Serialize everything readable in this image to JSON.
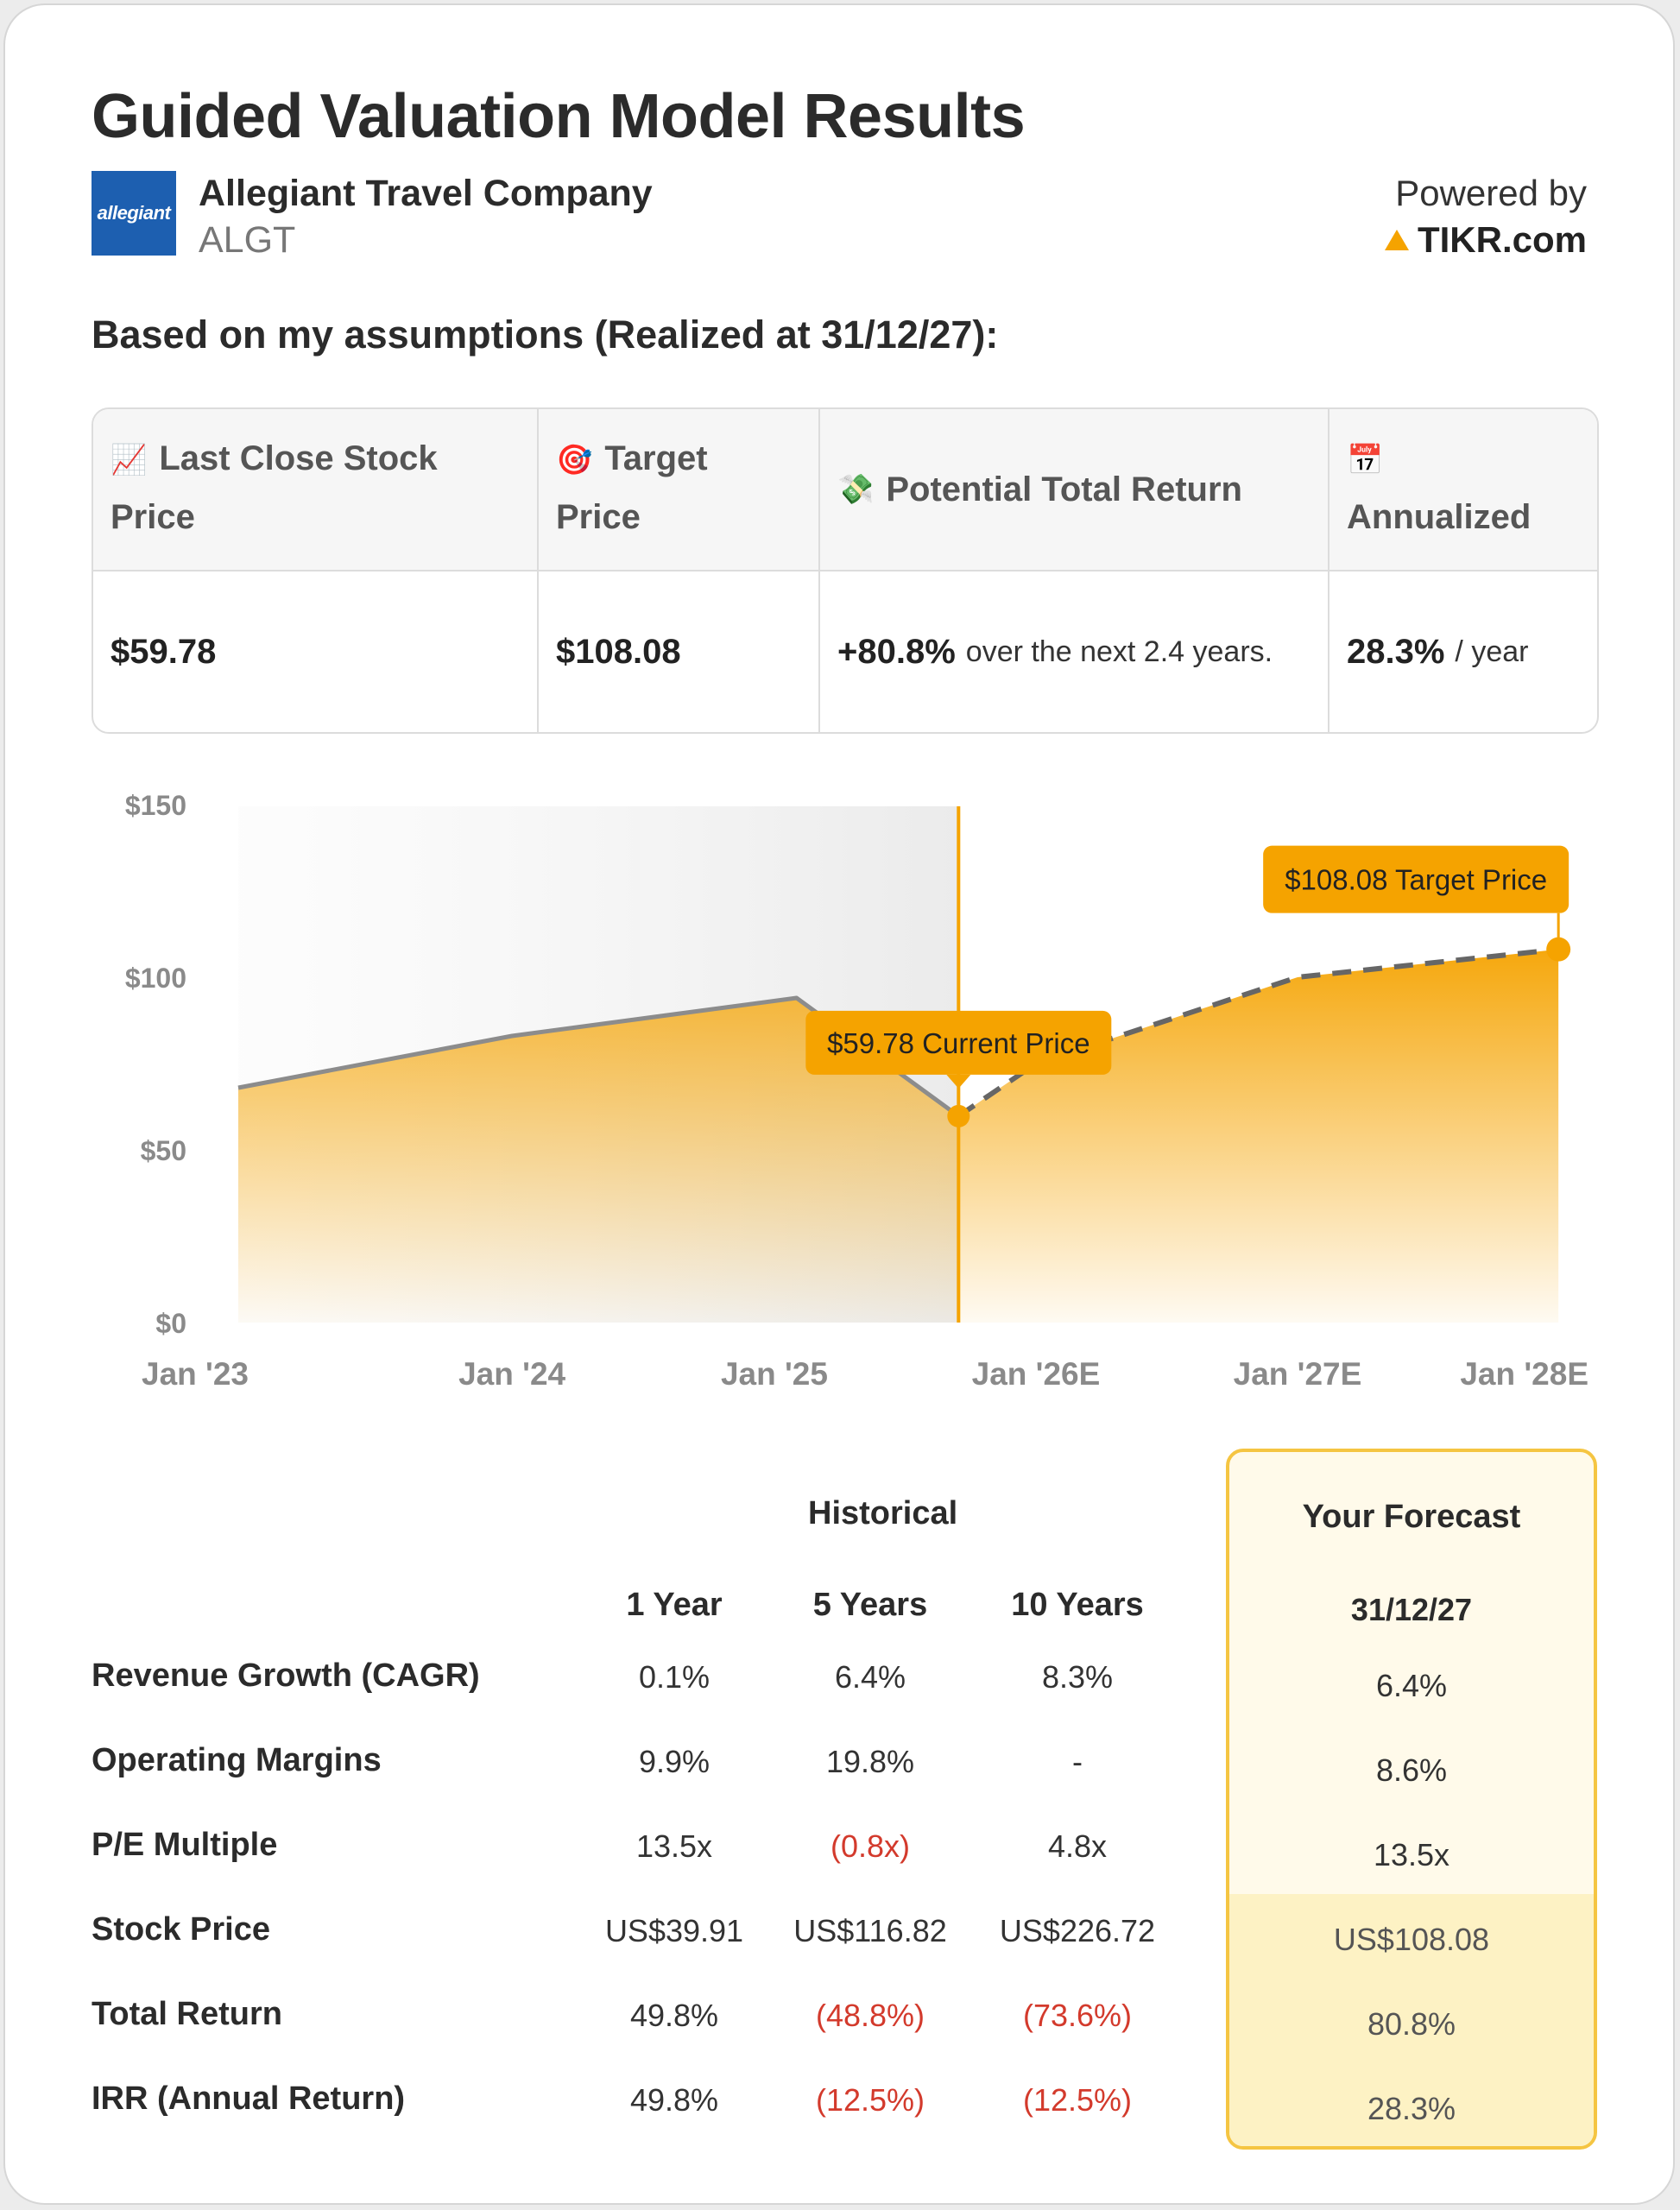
{
  "title": "Guided Valuation Model Results",
  "company": {
    "name": "Allegiant Travel Company",
    "ticker": "ALGT",
    "logo_text": "allegiant"
  },
  "powered_by": {
    "label": "Powered by",
    "brand": "TIKR.com"
  },
  "assumptions_text": "Based on my assumptions (Realized at 31/12/27):",
  "summary": {
    "headers": {
      "last_close": "Last Close Stock Price",
      "target": "Target Price",
      "potential": "Potential Total Return",
      "annualized": "Annualized"
    },
    "icons": {
      "last_close": "chart-increasing-icon",
      "target": "target-icon",
      "potential": "money-icon",
      "annualized": "calendar-icon"
    },
    "last_close_value": "$59.78",
    "target_value": "$108.08",
    "potential_value": "+80.8%",
    "potential_note": "over the next 2.4 years.",
    "annualized_value": "28.3%",
    "annualized_note": "/ year"
  },
  "chart_data": {
    "type": "area",
    "y_ticks": [
      "$150",
      "$100",
      "$50",
      "$0"
    ],
    "x_ticks": [
      "Jan '23",
      "Jan '24",
      "Jan '25",
      "Jan '26E",
      "Jan '27E",
      "Jan '28E"
    ],
    "ylim": [
      0,
      150
    ],
    "xlim": [
      "2022-12-15",
      "2028-01-01"
    ],
    "historical": [
      {
        "x": "2022-12-15",
        "y": 68
      },
      {
        "x": "2024-01-01",
        "y": 83
      },
      {
        "x": "2025-02-01",
        "y": 94
      },
      {
        "x": "2025-09-15",
        "y": 59.78
      }
    ],
    "forecast": [
      {
        "x": "2025-09-15",
        "y": 59.78
      },
      {
        "x": "2026-01-01",
        "y": 75
      },
      {
        "x": "2027-01-01",
        "y": 100
      },
      {
        "x": "2027-12-31",
        "y": 108.08
      }
    ],
    "current_date": "2025-09-15",
    "annotations": {
      "current": "$59.78 Current Price",
      "target": "$108.08 Target Price"
    },
    "colors": {
      "accent": "#f5a300",
      "line": "#8c8c8c",
      "dash": "#666666"
    }
  },
  "table": {
    "historical_label": "Historical",
    "columns": [
      "1 Year",
      "5 Years",
      "10 Years"
    ],
    "forecast_label": "Your Forecast",
    "forecast_date": "31/12/27",
    "rows": [
      {
        "label": "Revenue Growth (CAGR)",
        "values": [
          "0.1%",
          "6.4%",
          "8.3%"
        ],
        "forecast": "6.4%"
      },
      {
        "label": "Operating Margins",
        "values": [
          "9.9%",
          "19.8%",
          "-"
        ],
        "forecast": "8.6%"
      },
      {
        "label": "P/E Multiple",
        "values": [
          "13.5x",
          "(0.8x)",
          "4.8x"
        ],
        "forecast": "13.5x"
      },
      {
        "label": "Stock Price",
        "values": [
          "US$39.91",
          "US$116.82",
          "US$226.72"
        ],
        "forecast": "US$108.08"
      },
      {
        "label": "Total Return",
        "values": [
          "49.8%",
          "(48.8%)",
          "(73.6%)"
        ],
        "forecast": "80.8%"
      },
      {
        "label": "IRR (Annual Return)",
        "values": [
          "49.8%",
          "(12.5%)",
          "(12.5%)"
        ],
        "forecast": "28.3%"
      }
    ]
  }
}
